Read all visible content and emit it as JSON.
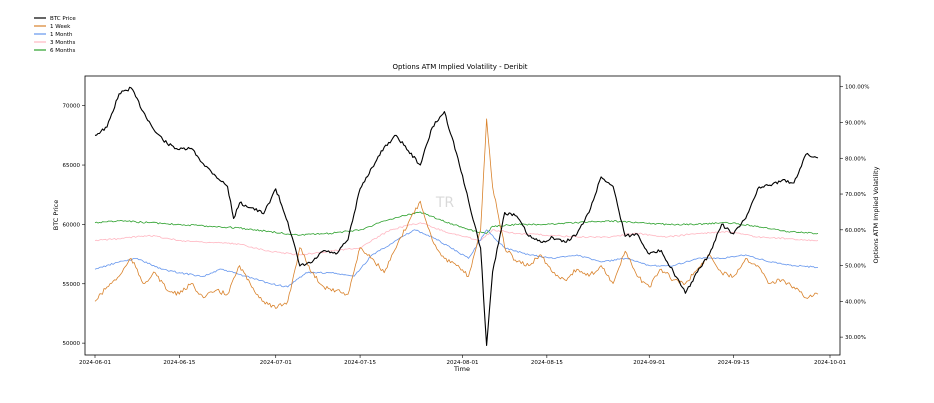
{
  "chart_data": {
    "type": "line",
    "title": "Options ATM Implied Volatility - Deribit",
    "xlabel": "Time",
    "ylabel_left": "BTC Price",
    "ylabel_right": "Options ATM Implied Volatility",
    "watermark": "TR",
    "x_ticks": [
      "2024-06-01",
      "2024-06-15",
      "2024-07-01",
      "2024-07-15",
      "2024-08-01",
      "2024-08-15",
      "2024-09-01",
      "2024-09-15",
      "2024-10-01"
    ],
    "x_range": [
      "2024-06-01",
      "2024-10-01"
    ],
    "y_left_ticks": [
      50000,
      55000,
      60000,
      65000,
      70000
    ],
    "y_left_range": [
      49000,
      72500
    ],
    "y_right_ticks": [
      "30.00%",
      "40.00%",
      "50.00%",
      "60.00%",
      "70.00%",
      "80.00%",
      "90.00%",
      "100.00%"
    ],
    "y_right_range": [
      25,
      103
    ],
    "legend_position": "top-left, outside plot",
    "grid": false,
    "series": [
      {
        "name": "BTC Price",
        "axis": "left",
        "color": "#000000",
        "points": [
          [
            "2024-06-01",
            67500
          ],
          [
            "2024-06-03",
            68200
          ],
          [
            "2024-06-05",
            71000
          ],
          [
            "2024-06-07",
            71500
          ],
          [
            "2024-06-09",
            69500
          ],
          [
            "2024-06-11",
            67800
          ],
          [
            "2024-06-13",
            66800
          ],
          [
            "2024-06-15",
            66300
          ],
          [
            "2024-06-17",
            66400
          ],
          [
            "2024-06-19",
            65100
          ],
          [
            "2024-06-21",
            64100
          ],
          [
            "2024-06-23",
            63200
          ],
          [
            "2024-06-24",
            60500
          ],
          [
            "2024-06-25",
            61800
          ],
          [
            "2024-06-27",
            61400
          ],
          [
            "2024-06-29",
            60900
          ],
          [
            "2024-07-01",
            63000
          ],
          [
            "2024-07-03",
            60200
          ],
          [
            "2024-07-05",
            56500
          ],
          [
            "2024-07-07",
            56800
          ],
          [
            "2024-07-09",
            57800
          ],
          [
            "2024-07-11",
            57500
          ],
          [
            "2024-07-13",
            58700
          ],
          [
            "2024-07-15",
            63000
          ],
          [
            "2024-07-17",
            64800
          ],
          [
            "2024-07-19",
            66500
          ],
          [
            "2024-07-21",
            67500
          ],
          [
            "2024-07-23",
            66200
          ],
          [
            "2024-07-25",
            65000
          ],
          [
            "2024-07-27",
            68200
          ],
          [
            "2024-07-29",
            69500
          ],
          [
            "2024-07-31",
            66000
          ],
          [
            "2024-08-02",
            62000
          ],
          [
            "2024-08-04",
            58000
          ],
          [
            "2024-08-05",
            49800
          ],
          [
            "2024-08-06",
            56000
          ],
          [
            "2024-08-08",
            61000
          ],
          [
            "2024-08-10",
            60700
          ],
          [
            "2024-08-12",
            59000
          ],
          [
            "2024-08-14",
            58500
          ],
          [
            "2024-08-16",
            58900
          ],
          [
            "2024-08-18",
            58500
          ],
          [
            "2024-08-20",
            59200
          ],
          [
            "2024-08-22",
            61000
          ],
          [
            "2024-08-24",
            64000
          ],
          [
            "2024-08-26",
            63200
          ],
          [
            "2024-08-28",
            59000
          ],
          [
            "2024-08-30",
            59200
          ],
          [
            "2024-09-01",
            57500
          ],
          [
            "2024-09-03",
            57800
          ],
          [
            "2024-09-05",
            56000
          ],
          [
            "2024-09-07",
            54200
          ],
          [
            "2024-09-09",
            56000
          ],
          [
            "2024-09-11",
            57500
          ],
          [
            "2024-09-13",
            60000
          ],
          [
            "2024-09-15",
            59200
          ],
          [
            "2024-09-17",
            60500
          ],
          [
            "2024-09-19",
            63000
          ],
          [
            "2024-09-21",
            63300
          ],
          [
            "2024-09-23",
            63700
          ],
          [
            "2024-09-25",
            63500
          ],
          [
            "2024-09-27",
            65900
          ],
          [
            "2024-09-29",
            65600
          ]
        ]
      },
      {
        "name": "1 Week",
        "axis": "right",
        "color": "#d9822b",
        "points": [
          [
            "2024-06-01",
            40
          ],
          [
            "2024-06-03",
            44
          ],
          [
            "2024-06-05",
            47
          ],
          [
            "2024-06-07",
            52
          ],
          [
            "2024-06-09",
            45
          ],
          [
            "2024-06-11",
            48
          ],
          [
            "2024-06-13",
            43
          ],
          [
            "2024-06-15",
            42
          ],
          [
            "2024-06-17",
            45
          ],
          [
            "2024-06-19",
            41
          ],
          [
            "2024-06-21",
            43
          ],
          [
            "2024-06-23",
            42
          ],
          [
            "2024-06-25",
            50
          ],
          [
            "2024-06-27",
            44
          ],
          [
            "2024-06-29",
            40
          ],
          [
            "2024-07-01",
            38
          ],
          [
            "2024-07-03",
            40
          ],
          [
            "2024-07-05",
            55
          ],
          [
            "2024-07-07",
            48
          ],
          [
            "2024-07-09",
            44
          ],
          [
            "2024-07-11",
            43
          ],
          [
            "2024-07-13",
            42
          ],
          [
            "2024-07-15",
            55
          ],
          [
            "2024-07-17",
            52
          ],
          [
            "2024-07-19",
            48
          ],
          [
            "2024-07-21",
            55
          ],
          [
            "2024-07-23",
            62
          ],
          [
            "2024-07-25",
            68
          ],
          [
            "2024-07-27",
            57
          ],
          [
            "2024-07-29",
            52
          ],
          [
            "2024-07-31",
            50
          ],
          [
            "2024-08-02",
            47
          ],
          [
            "2024-08-04",
            60
          ],
          [
            "2024-08-05",
            91
          ],
          [
            "2024-08-06",
            72
          ],
          [
            "2024-08-08",
            55
          ],
          [
            "2024-08-10",
            51
          ],
          [
            "2024-08-12",
            50
          ],
          [
            "2024-08-14",
            53
          ],
          [
            "2024-08-16",
            48
          ],
          [
            "2024-08-18",
            46
          ],
          [
            "2024-08-20",
            49
          ],
          [
            "2024-08-22",
            47
          ],
          [
            "2024-08-24",
            50
          ],
          [
            "2024-08-26",
            45
          ],
          [
            "2024-08-28",
            54
          ],
          [
            "2024-08-30",
            47
          ],
          [
            "2024-09-01",
            44
          ],
          [
            "2024-09-03",
            49
          ],
          [
            "2024-09-05",
            46
          ],
          [
            "2024-09-07",
            45
          ],
          [
            "2024-09-09",
            49
          ],
          [
            "2024-09-11",
            53
          ],
          [
            "2024-09-13",
            48
          ],
          [
            "2024-09-15",
            47
          ],
          [
            "2024-09-17",
            52
          ],
          [
            "2024-09-19",
            50
          ],
          [
            "2024-09-21",
            45
          ],
          [
            "2024-09-23",
            46
          ],
          [
            "2024-09-25",
            44
          ],
          [
            "2024-09-27",
            41
          ],
          [
            "2024-09-29",
            42
          ]
        ]
      },
      {
        "name": "1 Month",
        "axis": "right",
        "color": "#6495ed",
        "points": [
          [
            "2024-06-01",
            49
          ],
          [
            "2024-06-05",
            51
          ],
          [
            "2024-06-08",
            52
          ],
          [
            "2024-06-12",
            49
          ],
          [
            "2024-06-15",
            48
          ],
          [
            "2024-06-19",
            47
          ],
          [
            "2024-06-22",
            49
          ],
          [
            "2024-06-26",
            47
          ],
          [
            "2024-06-30",
            45
          ],
          [
            "2024-07-03",
            44
          ],
          [
            "2024-07-06",
            48
          ],
          [
            "2024-07-10",
            48
          ],
          [
            "2024-07-14",
            47
          ],
          [
            "2024-07-17",
            53
          ],
          [
            "2024-07-20",
            56
          ],
          [
            "2024-07-24",
            60
          ],
          [
            "2024-07-27",
            58
          ],
          [
            "2024-07-30",
            55
          ],
          [
            "2024-08-02",
            52
          ],
          [
            "2024-08-05",
            60
          ],
          [
            "2024-08-08",
            55
          ],
          [
            "2024-08-12",
            53
          ],
          [
            "2024-08-16",
            52
          ],
          [
            "2024-08-20",
            53
          ],
          [
            "2024-08-24",
            51
          ],
          [
            "2024-08-28",
            52
          ],
          [
            "2024-09-01",
            50
          ],
          [
            "2024-09-05",
            50
          ],
          [
            "2024-09-09",
            52
          ],
          [
            "2024-09-13",
            52
          ],
          [
            "2024-09-17",
            53
          ],
          [
            "2024-09-21",
            51
          ],
          [
            "2024-09-25",
            50
          ],
          [
            "2024-09-29",
            49.5
          ]
        ]
      },
      {
        "name": "3 Months",
        "axis": "right",
        "color": "#ffb6c1",
        "points": [
          [
            "2024-06-01",
            57
          ],
          [
            "2024-06-05",
            57.5
          ],
          [
            "2024-06-10",
            58.5
          ],
          [
            "2024-06-15",
            57
          ],
          [
            "2024-06-20",
            56.5
          ],
          [
            "2024-06-25",
            56
          ],
          [
            "2024-06-30",
            54
          ],
          [
            "2024-07-05",
            53
          ],
          [
            "2024-07-10",
            54
          ],
          [
            "2024-07-15",
            55
          ],
          [
            "2024-07-20",
            60
          ],
          [
            "2024-07-25",
            62
          ],
          [
            "2024-07-30",
            59
          ],
          [
            "2024-08-04",
            57
          ],
          [
            "2024-08-06",
            60
          ],
          [
            "2024-08-10",
            59
          ],
          [
            "2024-08-15",
            58.5
          ],
          [
            "2024-08-20",
            58
          ],
          [
            "2024-08-25",
            58
          ],
          [
            "2024-08-30",
            59
          ],
          [
            "2024-09-04",
            58
          ],
          [
            "2024-09-09",
            59
          ],
          [
            "2024-09-14",
            59.5
          ],
          [
            "2024-09-19",
            58
          ],
          [
            "2024-09-24",
            57.5
          ],
          [
            "2024-09-29",
            57
          ]
        ]
      },
      {
        "name": "6 Months",
        "axis": "right",
        "color": "#2ca02c",
        "points": [
          [
            "2024-06-01",
            62
          ],
          [
            "2024-06-05",
            62.5
          ],
          [
            "2024-06-10",
            62
          ],
          [
            "2024-06-15",
            61.5
          ],
          [
            "2024-06-20",
            61
          ],
          [
            "2024-06-25",
            60.5
          ],
          [
            "2024-06-30",
            59.5
          ],
          [
            "2024-07-05",
            58.5
          ],
          [
            "2024-07-10",
            59
          ],
          [
            "2024-07-15",
            60
          ],
          [
            "2024-07-20",
            63
          ],
          [
            "2024-07-25",
            65
          ],
          [
            "2024-07-28",
            63
          ],
          [
            "2024-08-02",
            60
          ],
          [
            "2024-08-05",
            59
          ],
          [
            "2024-08-06",
            61
          ],
          [
            "2024-08-10",
            61.5
          ],
          [
            "2024-08-15",
            61.5
          ],
          [
            "2024-08-20",
            62
          ],
          [
            "2024-08-25",
            62.5
          ],
          [
            "2024-08-30",
            62
          ],
          [
            "2024-09-04",
            61.5
          ],
          [
            "2024-09-09",
            61.5
          ],
          [
            "2024-09-14",
            62
          ],
          [
            "2024-09-19",
            61
          ],
          [
            "2024-09-24",
            59.5
          ],
          [
            "2024-09-29",
            59
          ]
        ]
      }
    ]
  }
}
